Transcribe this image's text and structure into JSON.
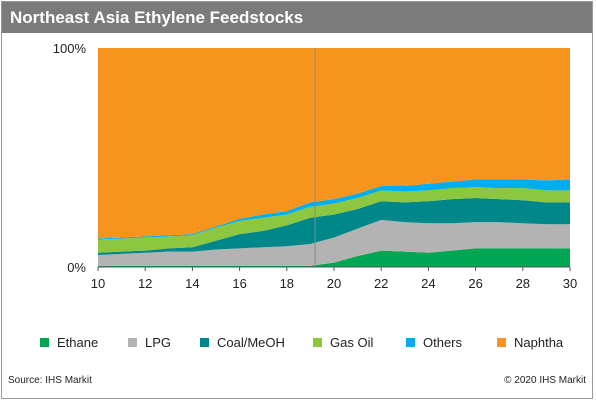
{
  "header": {
    "title": "Northeast Asia Ethylene Feedstocks"
  },
  "footer": {
    "source": "Source: IHS Markit",
    "copyright": "© 2020 IHS Markit"
  },
  "chart_data": {
    "type": "area",
    "stacked": true,
    "percent": true,
    "title": "Northeast Asia Ethylene Feedstocks",
    "xlabel": "",
    "ylabel": "",
    "x": [
      10,
      11,
      12,
      13,
      14,
      15,
      16,
      17,
      18,
      19,
      20,
      21,
      22,
      23,
      24,
      25,
      26,
      27,
      28,
      29,
      30
    ],
    "xlim": [
      10,
      30
    ],
    "ylim": [
      0,
      100
    ],
    "x_ticks": [
      "10",
      "12",
      "14",
      "16",
      "18",
      "20",
      "22",
      "24",
      "26",
      "28",
      "30"
    ],
    "y_ticks": [
      "0%",
      "100%"
    ],
    "series": [
      {
        "name": "Ethane",
        "color": "#00a651",
        "values": [
          0.5,
          0.5,
          0.5,
          0.5,
          0.5,
          0.5,
          0.5,
          0.5,
          0.5,
          0.5,
          2,
          5,
          7.5,
          7,
          6.5,
          7.5,
          8.5,
          8.5,
          8.5,
          8.5,
          8.5
        ]
      },
      {
        "name": "LPG",
        "color": "#b3b3b3",
        "values": [
          5,
          5.5,
          6,
          6.5,
          6.5,
          7.5,
          8,
          8.5,
          9,
          10,
          11.5,
          12.5,
          14,
          13.5,
          13.5,
          12.5,
          12,
          12,
          11.5,
          11,
          11
        ]
      },
      {
        "name": "Coal/MeOH",
        "color": "#00878a",
        "values": [
          1,
          1,
          1,
          1.5,
          2,
          4,
          6.5,
          7.5,
          9.5,
          12,
          10.5,
          9,
          8.5,
          9,
          10,
          11,
          11,
          10.5,
          10.5,
          10,
          10
        ]
      },
      {
        "name": "Gas Oil",
        "color": "#8dc63f",
        "values": [
          6,
          6,
          6,
          5.5,
          5.5,
          6,
          6,
          6,
          5,
          5,
          5,
          5,
          5,
          5,
          5,
          5,
          5,
          5,
          5.5,
          5.5,
          5.5
        ]
      },
      {
        "name": "Others",
        "color": "#00aeef",
        "values": [
          0.5,
          0.5,
          0.5,
          0.5,
          0.5,
          0.5,
          1,
          1.5,
          1.5,
          2,
          2,
          2,
          2,
          2.5,
          3,
          3,
          3.5,
          4,
          4,
          4.5,
          5
        ]
      },
      {
        "name": "Naphtha",
        "color": "#f7941d",
        "values": [
          87,
          86.5,
          86,
          85.5,
          85,
          81.5,
          78,
          76,
          74.5,
          70.5,
          69,
          66.5,
          63,
          63,
          62,
          61,
          60,
          60,
          60,
          60.5,
          60
        ]
      }
    ],
    "annotations": {
      "vertical_line_x": 19.2
    },
    "grid": false,
    "legend_position": "bottom"
  }
}
